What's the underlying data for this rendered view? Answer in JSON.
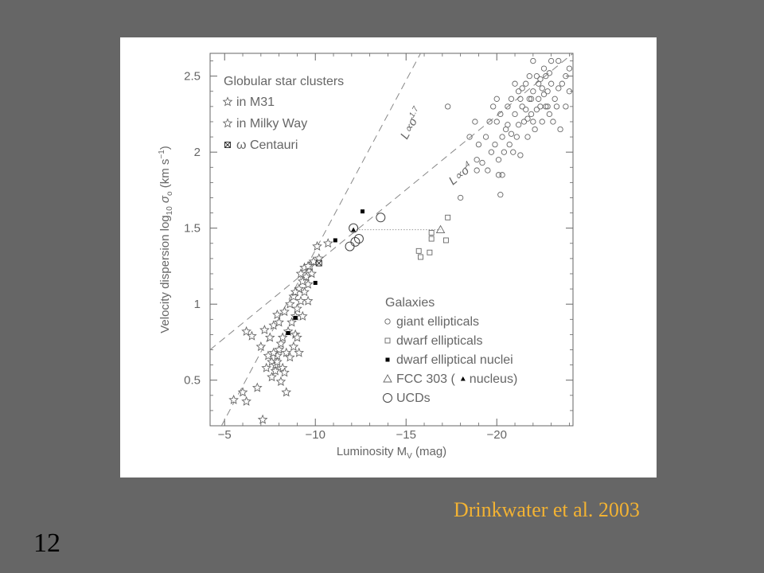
{
  "slide": {
    "number": "12",
    "credit": "Drinkwater et al. 2003"
  },
  "chart_data": {
    "type": "scatter",
    "title": "",
    "xlabel": "Luminosity M",
    "xlabel_sub": "V",
    "xlabel_unit": " (mag)",
    "ylabel": "Velocity dispersion log",
    "ylabel_sub": "10",
    "ylabel_sym": "σ",
    "ylabel_sym_sub": "o",
    "ylabel_unit": "(km s",
    "ylabel_unit_sup": "−1",
    "ylabel_unit_end": ")",
    "xlim": [
      -4.2,
      -24.2
    ],
    "ylim": [
      0.2,
      2.65
    ],
    "x_inverted": true,
    "x_ticks": [
      -5,
      -10,
      -15,
      -20
    ],
    "x_tick_labels": [
      "−5",
      "−10",
      "−15",
      "−20"
    ],
    "y_ticks": [
      0.5,
      1,
      1.5,
      2,
      2.5
    ],
    "y_tick_labels": [
      "0.5",
      "1",
      "1.5",
      "2",
      "2.5"
    ],
    "lines": [
      {
        "label": "L∝σ",
        "label_sup": "1.7",
        "p1": [
          -4.2,
          0.06
        ],
        "p2": [
          -15.8,
          2.65
        ]
      },
      {
        "label": "L∝σ",
        "label_sup": "4",
        "p1": [
          -4.2,
          0.7
        ],
        "p2": [
          -24.2,
          2.65
        ]
      }
    ],
    "legend_top": {
      "title": "Globular star clusters",
      "entries": [
        "in M31",
        "in Milky Way",
        "ω Centauri"
      ],
      "placement": "top-left"
    },
    "legend_bottom": {
      "title": "Galaxies",
      "entries": [
        "giant ellipticals",
        "dwarf ellipticals",
        "dwarf elliptical nuclei",
        "FCC 303 (",
        "nucleus)",
        "UCDs"
      ],
      "placement": "bottom-right"
    },
    "series": [
      {
        "name": "in M31",
        "marker": "star",
        "points": [
          [
            -6.2,
            0.82
          ],
          [
            -6.5,
            0.79
          ],
          [
            -7.0,
            0.72
          ],
          [
            -7.4,
            0.66
          ],
          [
            -7.6,
            0.62
          ],
          [
            -7.8,
            0.6
          ],
          [
            -7.9,
            0.66
          ],
          [
            -8.0,
            0.7
          ],
          [
            -8.1,
            0.74
          ],
          [
            -8.2,
            0.78
          ],
          [
            -7.7,
            0.86
          ],
          [
            -8.5,
            0.82
          ],
          [
            -8.7,
            0.88
          ],
          [
            -8.9,
            0.92
          ],
          [
            -9.0,
            0.97
          ],
          [
            -9.2,
            1.02
          ],
          [
            -9.4,
            1.08
          ],
          [
            -9.6,
            1.13
          ],
          [
            -9.8,
            1.2
          ],
          [
            -8.3,
            0.95
          ],
          [
            -8.6,
            1.0
          ],
          [
            -8.8,
            1.05
          ],
          [
            -9.1,
            1.1
          ],
          [
            -9.3,
            1.15
          ],
          [
            -9.5,
            1.18
          ],
          [
            -9.7,
            1.25
          ],
          [
            -9.9,
            1.28
          ],
          [
            -10.2,
            1.3
          ],
          [
            -9.4,
            1.24
          ],
          [
            -8.4,
            0.68
          ],
          [
            -8.2,
            0.58
          ],
          [
            -7.5,
            0.78
          ],
          [
            -8.9,
            0.8
          ],
          [
            -9.6,
            1.02
          ],
          [
            -10.1,
            1.38
          ],
          [
            -10.7,
            1.4
          ],
          [
            -7.2,
            0.83
          ],
          [
            -8.0,
            0.88
          ],
          [
            -7.9,
            0.93
          ]
        ]
      },
      {
        "name": "in Milky Way",
        "marker": "star",
        "points": [
          [
            -5.5,
            0.37
          ],
          [
            -6.0,
            0.42
          ],
          [
            -6.2,
            0.36
          ],
          [
            -6.8,
            0.45
          ],
          [
            -7.1,
            0.24
          ],
          [
            -7.6,
            0.52
          ],
          [
            -7.9,
            0.62
          ],
          [
            -8.1,
            0.49
          ],
          [
            -8.3,
            0.55
          ],
          [
            -8.6,
            0.65
          ],
          [
            -8.8,
            0.72
          ],
          [
            -9.0,
            0.78
          ],
          [
            -7.3,
            0.58
          ],
          [
            -7.7,
            0.68
          ],
          [
            -9.1,
            0.68
          ],
          [
            -8.4,
            0.42
          ],
          [
            -7.8,
            0.56
          ],
          [
            -8.9,
            1.08
          ],
          [
            -9.3,
            0.92
          ],
          [
            -9.2,
            1.2
          ],
          [
            -9.6,
            1.25
          ]
        ]
      },
      {
        "name": "ω Centauri",
        "marker": "cross-square",
        "points": [
          [
            -10.2,
            1.27
          ]
        ]
      },
      {
        "name": "giant ellipticals",
        "marker": "circle-small",
        "points": [
          [
            -17.3,
            2.3
          ],
          [
            -18.8,
            2.2
          ],
          [
            -18.5,
            2.1
          ],
          [
            -18.9,
            1.95
          ],
          [
            -19.0,
            2.05
          ],
          [
            -18.0,
            1.7
          ],
          [
            -18.9,
            1.88
          ],
          [
            -20.3,
            1.85
          ],
          [
            -19.4,
            2.1
          ],
          [
            -19.2,
            1.93
          ],
          [
            -20.1,
            1.95
          ],
          [
            -19.6,
            2.2
          ],
          [
            -19.8,
            2.3
          ],
          [
            -20.0,
            2.2
          ],
          [
            -20.5,
            2.15
          ],
          [
            -20.8,
            2.35
          ],
          [
            -21.0,
            2.25
          ],
          [
            -21.2,
            2.4
          ],
          [
            -21.4,
            2.3
          ],
          [
            -21.6,
            2.45
          ],
          [
            -21.8,
            2.35
          ],
          [
            -22.0,
            2.4
          ],
          [
            -22.2,
            2.5
          ],
          [
            -22.4,
            2.3
          ],
          [
            -22.6,
            2.55
          ],
          [
            -22.8,
            2.4
          ],
          [
            -23.0,
            2.45
          ],
          [
            -23.2,
            2.35
          ],
          [
            -23.4,
            2.6
          ],
          [
            -23.6,
            2.45
          ],
          [
            -23.8,
            2.5
          ],
          [
            -24.0,
            2.55
          ],
          [
            -21.5,
            2.2
          ],
          [
            -21.7,
            2.1
          ],
          [
            -21.9,
            2.25
          ],
          [
            -22.1,
            2.15
          ],
          [
            -22.3,
            2.35
          ],
          [
            -22.5,
            2.2
          ],
          [
            -22.7,
            2.3
          ],
          [
            -22.9,
            2.25
          ],
          [
            -23.1,
            2.2
          ],
          [
            -23.3,
            2.3
          ],
          [
            -20.7,
            2.05
          ],
          [
            -20.9,
            2.0
          ],
          [
            -21.1,
            2.1
          ],
          [
            -20.2,
            2.25
          ],
          [
            -20.4,
            2.0
          ],
          [
            -20.6,
            2.3
          ],
          [
            -19.9,
            2.05
          ],
          [
            -21.3,
            1.98
          ],
          [
            -21.0,
            2.45
          ],
          [
            -22.0,
            2.6
          ],
          [
            -22.3,
            2.45
          ],
          [
            -22.5,
            2.42
          ],
          [
            -23.5,
            2.15
          ],
          [
            -23.8,
            2.3
          ],
          [
            -24.0,
            2.4
          ],
          [
            -23.0,
            2.6
          ],
          [
            -21.8,
            2.5
          ],
          [
            -22.7,
            2.5
          ],
          [
            -22.2,
            2.28
          ],
          [
            -21.3,
            2.35
          ],
          [
            -21.6,
            2.28
          ],
          [
            -20.3,
            2.1
          ],
          [
            -20.0,
            2.35
          ],
          [
            -19.7,
            2.0
          ],
          [
            -20.1,
            1.85
          ],
          [
            -21.9,
            2.35
          ],
          [
            -22.6,
            2.38
          ],
          [
            -22.0,
            2.2
          ],
          [
            -21.4,
            2.42
          ],
          [
            -22.9,
            2.52
          ],
          [
            -23.4,
            2.42
          ],
          [
            -20.6,
            2.18
          ],
          [
            -21.2,
            2.18
          ],
          [
            -19.5,
            1.88
          ],
          [
            -20.8,
            2.12
          ],
          [
            -20.2,
            1.72
          ],
          [
            -21.7,
            2.22
          ],
          [
            -22.4,
            2.48
          ],
          [
            -22.8,
            2.3
          ]
        ]
      },
      {
        "name": "dwarf ellipticals",
        "marker": "square-small",
        "points": [
          [
            -17.3,
            1.57
          ],
          [
            -17.2,
            1.42
          ],
          [
            -16.4,
            1.43
          ],
          [
            -16.3,
            1.34
          ],
          [
            -15.8,
            1.31
          ],
          [
            -15.7,
            1.35
          ],
          [
            -16.4,
            1.47
          ]
        ]
      },
      {
        "name": "dwarf elliptical nuclei",
        "marker": "square-filled",
        "points": [
          [
            -12.6,
            1.61
          ],
          [
            -11.1,
            1.42
          ],
          [
            -10.0,
            1.14
          ],
          [
            -8.9,
            0.91
          ],
          [
            -8.5,
            0.81
          ]
        ]
      },
      {
        "name": "FCC 303",
        "marker": "triangle-open",
        "points": [
          [
            -16.9,
            1.49
          ]
        ]
      },
      {
        "name": "nucleus",
        "marker": "triangle-filled",
        "points": [
          [
            -12.1,
            1.49
          ]
        ]
      },
      {
        "name": "UCDs",
        "marker": "circle-large",
        "points": [
          [
            -13.6,
            1.57
          ],
          [
            -12.1,
            1.5
          ],
          [
            -12.4,
            1.43
          ],
          [
            -12.2,
            1.41
          ],
          [
            -11.9,
            1.38
          ]
        ]
      }
    ],
    "connector": {
      "style": "dotted",
      "from": [
        -12.1,
        1.49
      ],
      "to": [
        -16.9,
        1.49
      ]
    }
  }
}
